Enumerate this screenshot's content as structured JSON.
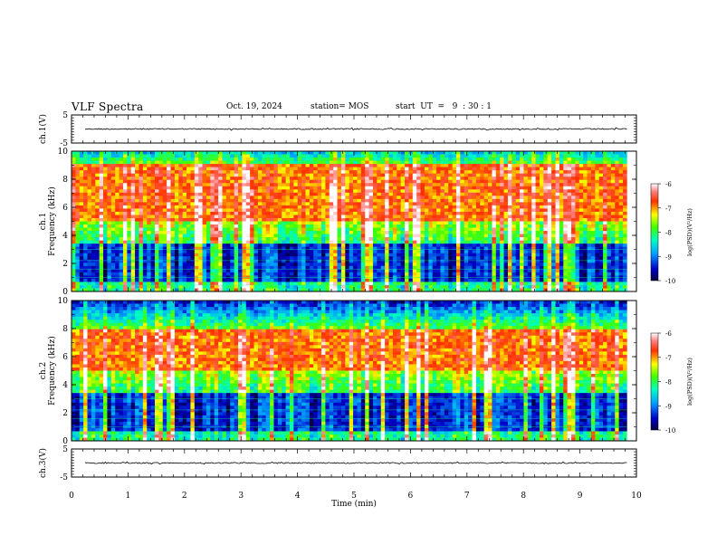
{
  "header": {
    "title": "VLF Spectra",
    "date": "Oct. 19, 2024",
    "station": "station= MOS",
    "start": "start  UT  =   9  : 30 : 1"
  },
  "chart_data": [
    {
      "type": "line",
      "name": "channel-1-waveform",
      "ylabel": "ch.1(V)",
      "ylim": [
        -5,
        5
      ],
      "yticks": [
        "5",
        "-5"
      ],
      "x_range": [
        0,
        9.83
      ],
      "level": 0
    },
    {
      "type": "heatmap",
      "name": "channel-1-spectrogram",
      "ylabel": "ch.1\nFrequency (kHz)",
      "ylim": [
        0,
        10
      ],
      "yticks": [
        "0",
        "2",
        "4",
        "6",
        "8",
        "10"
      ],
      "x_range": [
        0,
        9.83
      ],
      "colorbar": {
        "label": "log(PSD)(V²/Hz)",
        "range": [
          -10,
          -6
        ],
        "ticks": [
          "-6",
          "-7",
          "-8",
          "-9",
          "-10"
        ]
      },
      "intense_band_khz": [
        5,
        9
      ]
    },
    {
      "type": "heatmap",
      "name": "channel-2-spectrogram",
      "ylabel": "ch.2\nFrequency (kHz)",
      "ylim": [
        0,
        10
      ],
      "yticks": [
        "0",
        "2",
        "4",
        "6",
        "8",
        "10"
      ],
      "x_range": [
        0,
        9.83
      ],
      "colorbar": {
        "label": "log(PSD)(V²/Hz)",
        "range": [
          -10,
          -6
        ],
        "ticks": [
          "-6",
          "-7",
          "-8",
          "-9",
          "-10"
        ]
      },
      "intense_band_khz": [
        5,
        8
      ]
    },
    {
      "type": "line",
      "name": "channel-3-waveform",
      "ylabel": "ch.3(V)",
      "ylim": [
        -5,
        5
      ],
      "yticks": [
        "5",
        "-5"
      ],
      "x_range": [
        0,
        9.83
      ],
      "level": 0
    }
  ],
  "xaxis": {
    "label": "Time (min)",
    "range": [
      0,
      10
    ],
    "ticks": [
      "0",
      "1",
      "2",
      "3",
      "4",
      "5",
      "6",
      "7",
      "8",
      "9",
      "10"
    ]
  }
}
